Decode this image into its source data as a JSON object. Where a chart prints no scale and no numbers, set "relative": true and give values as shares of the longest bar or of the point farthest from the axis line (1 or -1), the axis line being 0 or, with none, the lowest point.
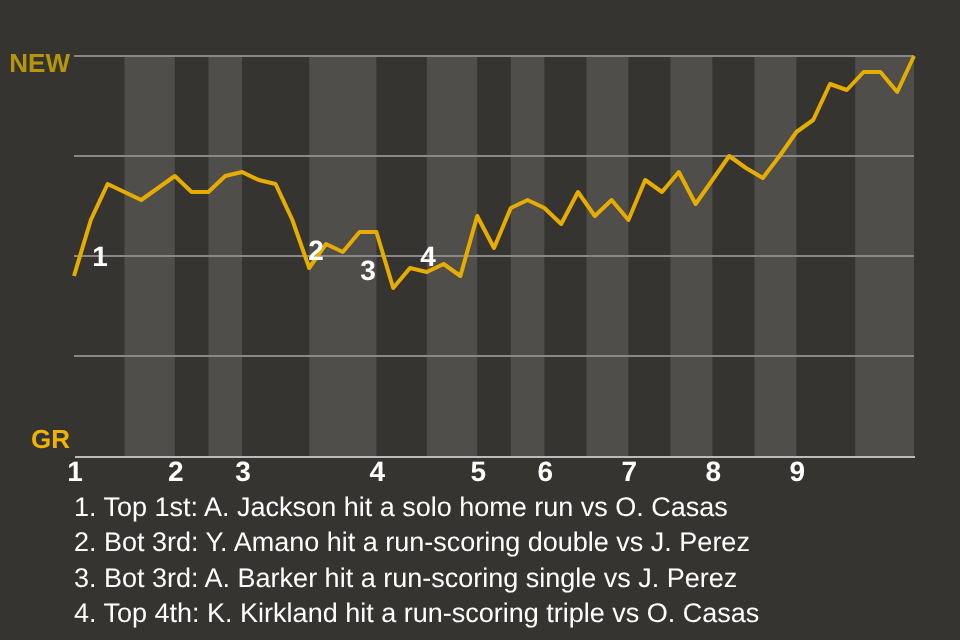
{
  "chart_data": {
    "type": "line",
    "relative": true,
    "categories": [
      "1",
      null,
      null,
      null,
      null,
      null,
      "2",
      null,
      null,
      null,
      "3",
      null,
      null,
      null,
      null,
      null,
      null,
      null,
      "4",
      null,
      null,
      null,
      null,
      null,
      "5",
      null,
      null,
      null,
      "6",
      null,
      null,
      null,
      null,
      "7",
      null,
      null,
      null,
      null,
      "8",
      null,
      null,
      null,
      null,
      "9",
      null,
      null,
      null,
      null,
      null,
      null,
      null
    ],
    "series": [
      {
        "color": "#e6ac00",
        "values": [
          0.45,
          0.59,
          0.68,
          0.66,
          0.64,
          0.67,
          0.7,
          0.66,
          0.66,
          0.7,
          0.71,
          0.69,
          0.68,
          0.59,
          0.47,
          0.53,
          0.51,
          0.56,
          0.56,
          0.42,
          0.47,
          0.46,
          0.48,
          0.45,
          0.6,
          0.52,
          0.62,
          0.64,
          0.62,
          0.58,
          0.66,
          0.6,
          0.64,
          0.59,
          0.69,
          0.66,
          0.71,
          0.63,
          0.69,
          0.75,
          0.72,
          0.695,
          0.75,
          0.81,
          0.84,
          0.93,
          0.915,
          0.96,
          0.96,
          0.91,
          1.0
        ]
      }
    ],
    "grid": "y",
    "annotations": [
      "1",
      "2",
      "3",
      "4",
      "NEW",
      "GR",
      "1. Top 1st: A. Jackson hit a solo home run vs O. Casas",
      "2. Bot 3rd: Y. Amano hit a run-scoring double vs J. Perez",
      "3. Bot 3rd: A. Barker hit a run-scoring single vs J. Perez",
      "4. Top 4th: K. Kirkland hit a run-scoring triple vs O. Casas"
    ]
  }
}
